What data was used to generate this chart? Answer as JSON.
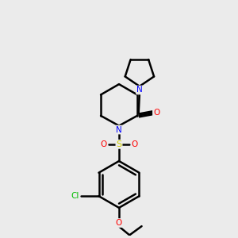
{
  "background_color": "#ebebeb",
  "bond_color": "#000000",
  "n_color": "#0000ff",
  "o_color": "#ff0000",
  "s_color": "#cccc00",
  "cl_color": "#00bb00",
  "line_width": 1.8,
  "figsize": [
    3.0,
    3.0
  ],
  "dpi": 100,
  "xlim": [
    0,
    10
  ],
  "ylim": [
    0,
    10
  ]
}
